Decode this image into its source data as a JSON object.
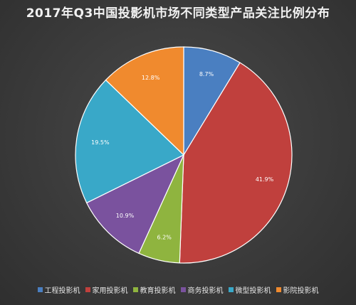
{
  "chart_data": {
    "type": "pie",
    "title": "2017年Q3中国投影机市场不同类型产品关注比例分布",
    "categories": [
      "工程投影机",
      "家用投影机",
      "教育投影机",
      "商务投影机",
      "微型投影机",
      "影院投影机"
    ],
    "values": [
      8.7,
      41.9,
      6.2,
      10.9,
      19.5,
      12.8
    ],
    "value_labels": [
      "8.7%",
      "41.9%",
      "6.2%",
      "10.9%",
      "19.5%",
      "12.8%"
    ],
    "colors": [
      "#4a7fc1",
      "#c0403d",
      "#8fb43f",
      "#7a529e",
      "#39a8c8",
      "#f08a2e"
    ],
    "start_angle_deg": 0,
    "direction": "clockwise",
    "legend_position": "bottom"
  }
}
